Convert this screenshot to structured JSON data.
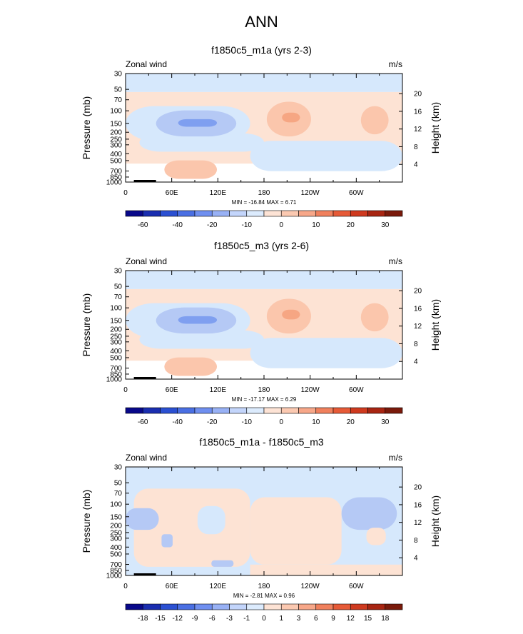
{
  "title": "ANN",
  "chart_data": [
    {
      "type": "heatmap",
      "title": "f1850c5_m1a (yrs 2-3)",
      "variable_label": "Zonal wind",
      "units": "m/s",
      "ylabel": "Pressure (mb)",
      "ylabel_right": "Height (km)",
      "x_ticks": [
        "0",
        "60E",
        "120E",
        "180",
        "120W",
        "60W"
      ],
      "y_ticks": [
        "30",
        "50",
        "70",
        "100",
        "150",
        "200",
        "250",
        "300",
        "400",
        "500",
        "700",
        "850",
        "1000"
      ],
      "height_ticks": [
        "20",
        "16",
        "12",
        "8",
        "4"
      ],
      "stats": "MIN = -16.84   MAX =   6.71",
      "colorbar_labels": [
        "-60",
        "-40",
        "-20",
        "-10",
        "0",
        "10",
        "20",
        "30"
      ],
      "min": -16.84,
      "max": 6.71
    },
    {
      "type": "heatmap",
      "title": "f1850c5_m3 (yrs 2-6)",
      "variable_label": "Zonal wind",
      "units": "m/s",
      "ylabel": "Pressure (mb)",
      "ylabel_right": "Height (km)",
      "x_ticks": [
        "0",
        "60E",
        "120E",
        "180",
        "120W",
        "60W"
      ],
      "y_ticks": [
        "30",
        "50",
        "70",
        "100",
        "150",
        "200",
        "250",
        "300",
        "400",
        "500",
        "700",
        "850",
        "1000"
      ],
      "height_ticks": [
        "20",
        "16",
        "12",
        "8",
        "4"
      ],
      "stats": "MIN = -17.17   MAX =   6.29",
      "colorbar_labels": [
        "-60",
        "-40",
        "-20",
        "-10",
        "0",
        "10",
        "20",
        "30"
      ],
      "min": -17.17,
      "max": 6.29
    },
    {
      "type": "heatmap",
      "title": "f1850c5_m1a - f1850c5_m3",
      "variable_label": "Zonal wind",
      "units": "m/s",
      "ylabel": "Pressure (mb)",
      "ylabel_right": "Height (km)",
      "x_ticks": [
        "0",
        "60E",
        "120E",
        "180",
        "120W",
        "60W"
      ],
      "y_ticks": [
        "30",
        "50",
        "70",
        "100",
        "150",
        "200",
        "250",
        "300",
        "400",
        "500",
        "700",
        "850",
        "1000"
      ],
      "height_ticks": [
        "20",
        "16",
        "12",
        "8",
        "4"
      ],
      "stats": "MIN = -2.81   MAX =   0.96",
      "colorbar_labels": [
        "-18",
        "-15",
        "-12",
        "-9",
        "-6",
        "-3",
        "-1",
        "0",
        "1",
        "3",
        "6",
        "9",
        "12",
        "15",
        "18"
      ],
      "min": -2.81,
      "max": 0.96
    }
  ],
  "colors": {
    "colorbar": [
      "#08088a",
      "#1a2eb0",
      "#2b50d2",
      "#4a6fe3",
      "#6f8ff0",
      "#98b1f5",
      "#c3d5fb",
      "#dcebfd",
      "#fde3d5",
      "#fbc9b1",
      "#f7a789",
      "#f0805d",
      "#e65a37",
      "#cf3a1f",
      "#a82512",
      "#7a1a0b"
    ],
    "lb": "#d6e8fc",
    "lm": "#b5c9f5",
    "ld": "#7f9ff0",
    "pl": "#fde3d4",
    "pm": "#fbc6ac",
    "pd": "#f6a683",
    "terrain": "#000000"
  }
}
